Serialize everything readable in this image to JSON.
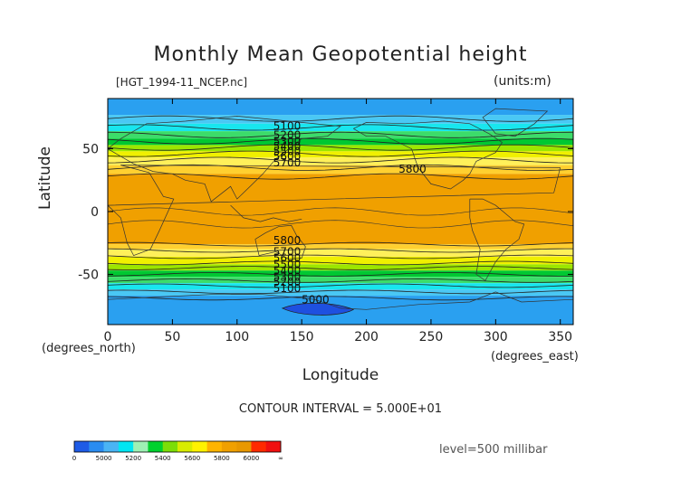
{
  "chart_data": {
    "type": "heatmap",
    "title": "Monthly Mean Geopotential height",
    "source_label": "[HGT_1994-11_NCEP.nc]",
    "units_label": "(units:m)",
    "xlabel": "Longitude",
    "ylabel": "Latitude",
    "x_unit_label": "(degrees_east)",
    "y_unit_label": "(degrees_north)",
    "xlim": [
      0,
      360
    ],
    "ylim": [
      -90,
      90
    ],
    "x_ticks": [
      0,
      50,
      100,
      150,
      200,
      250,
      300,
      350
    ],
    "y_ticks": [
      -50,
      0,
      50
    ],
    "contour_interval_text": "CONTOUR INTERVAL = 5.000E+01",
    "level_text": "level=500 millibar",
    "contour_labels": [
      {
        "text": "5100",
        "lon": 128,
        "lat": 65
      },
      {
        "text": "5200",
        "lon": 128,
        "lat": 58
      },
      {
        "text": "5300",
        "lon": 128,
        "lat": 53
      },
      {
        "text": "5400",
        "lon": 128,
        "lat": 49
      },
      {
        "text": "5500",
        "lon": 128,
        "lat": 45
      },
      {
        "text": "5600",
        "lon": 128,
        "lat": 41
      },
      {
        "text": "5700",
        "lon": 128,
        "lat": 36
      },
      {
        "text": "5800",
        "lon": 225,
        "lat": 31
      },
      {
        "text": "5800",
        "lon": 128,
        "lat": -26
      },
      {
        "text": "5700",
        "lon": 128,
        "lat": -35
      },
      {
        "text": "5600",
        "lon": 128,
        "lat": -40
      },
      {
        "text": "5500",
        "lon": 128,
        "lat": -45
      },
      {
        "text": "5400",
        "lon": 128,
        "lat": -50
      },
      {
        "text": "5300",
        "lon": 128,
        "lat": -55
      },
      {
        "text": "5200",
        "lon": 128,
        "lat": -59
      },
      {
        "text": "5100",
        "lon": 128,
        "lat": -64
      },
      {
        "text": "5000",
        "lon": 150,
        "lat": -73
      }
    ],
    "colorbar": {
      "tick_labels": [
        "0",
        "5000",
        "5200",
        "5400",
        "5600",
        "5800",
        "6000",
        "∞"
      ],
      "colors": [
        "#1E5BE6",
        "#2A8CF0",
        "#4AB4F4",
        "#00E6F2",
        "#9EF0B4",
        "#00D12E",
        "#7CDD08",
        "#D8EC00",
        "#FFF200",
        "#FFB400",
        "#F0A000",
        "#E89800",
        "#FF2A00",
        "#F01010"
      ]
    }
  }
}
